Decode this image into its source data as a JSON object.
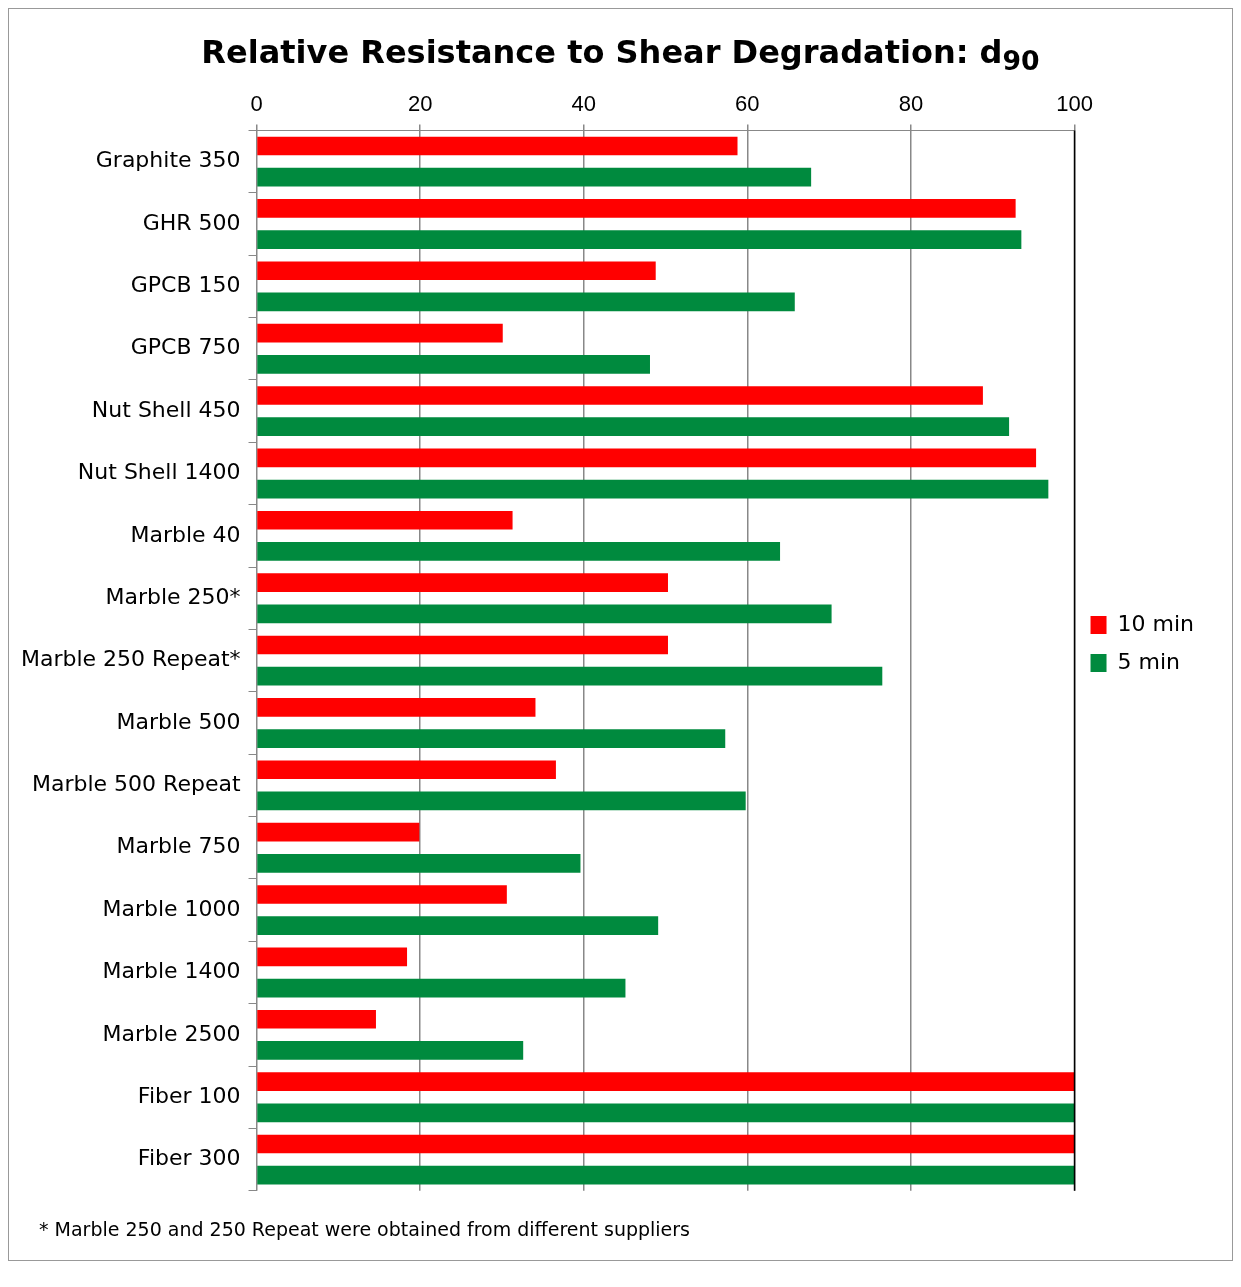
{
  "chart_data": {
    "type": "bar",
    "orientation": "horizontal",
    "title": "Relative Resistance to Shear Degradation:  d$_{90}$",
    "categories": [
      "Graphite 350",
      "GHR 500",
      "GPCB 150",
      "GPCB 750",
      "Nut Shell 450",
      "Nut Shell 1400",
      "Marble 40",
      "Marble 250*",
      "Marble 250 Repeat*",
      "Marble 500",
      "Marble 500 Repeat",
      "Marble 750",
      "Marble 1000",
      "Marble 1400",
      "Marble 2500",
      "Fiber 100",
      "Fiber 300"
    ],
    "series": [
      {
        "name": "10 min",
        "color": "#ff0000",
        "values": [
          58.8,
          92.8,
          48.8,
          30.1,
          88.8,
          95.3,
          31.3,
          50.3,
          50.3,
          34.1,
          36.6,
          19.9,
          30.6,
          18.4,
          14.6,
          100,
          100
        ]
      },
      {
        "name": "5 min",
        "color": "#008a3e",
        "values": [
          67.8,
          93.5,
          65.8,
          48.1,
          92.0,
          96.8,
          64.0,
          70.3,
          76.5,
          57.3,
          59.8,
          39.6,
          49.1,
          45.1,
          32.6,
          100,
          100
        ]
      }
    ],
    "xlim": [
      0,
      100
    ],
    "xticks": [
      0,
      20,
      40,
      60,
      80,
      100
    ],
    "grid": "x",
    "legend": "right",
    "annotations": [
      "*  Marble 250 and 250 Repeat were obtained from different suppliers"
    ]
  }
}
